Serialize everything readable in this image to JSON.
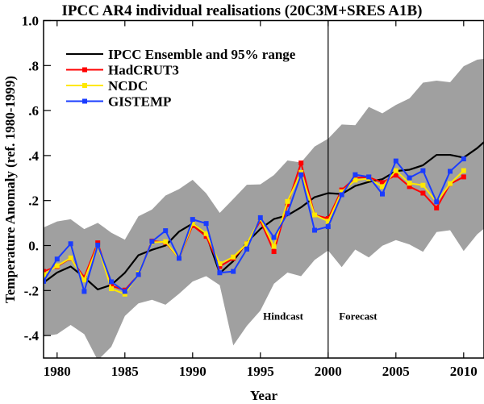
{
  "chart_data": {
    "type": "line",
    "title": "IPCC AR4 individual realisations (20C3M+SRES A1B)",
    "xlabel": "Year",
    "ylabel": "Temperature Anomaly (ref. 1980-1999)",
    "xlim": [
      1979,
      2011.5
    ],
    "ylim": [
      -0.5,
      1.0
    ],
    "xticks": [
      1980,
      1985,
      1990,
      1995,
      2000,
      2005,
      2010
    ],
    "xtick_labels": [
      "1980",
      "1985",
      "1990",
      "1995",
      "2000",
      "2005",
      "2010"
    ],
    "yticks": [
      -0.4,
      -0.2,
      0.0,
      0.2,
      0.4,
      0.6,
      0.8,
      1.0
    ],
    "ytick_labels": [
      "-.4",
      "-.2",
      "0.",
      ".2",
      ".4",
      ".6",
      ".8",
      "1.0"
    ],
    "grid": false,
    "legend_position": "top-left",
    "divider_year": 2000,
    "annotations": [
      {
        "text": "Hindcast",
        "x": 1995.2,
        "y": -0.33
      },
      {
        "text": "Forecast",
        "x": 2000.8,
        "y": -0.33
      }
    ],
    "band": {
      "name": "IPCC 95% range",
      "color": "#a0a0a0",
      "x": [
        1979,
        1980,
        1981,
        1982,
        1983,
        1984,
        1985,
        1986,
        1987,
        1988,
        1989,
        1990,
        1991,
        1992,
        1993,
        1994,
        1995,
        1996,
        1997,
        1998,
        1999,
        2000,
        2001,
        2002,
        2003,
        2004,
        2005,
        2006,
        2007,
        2008,
        2009,
        2010,
        2011,
        2011.5
      ],
      "upper": [
        0.08,
        0.107,
        0.117,
        0.073,
        0.101,
        0.057,
        0.026,
        0.13,
        0.16,
        0.222,
        0.251,
        0.292,
        0.232,
        0.145,
        0.207,
        0.27,
        0.272,
        0.313,
        0.378,
        0.369,
        0.44,
        0.475,
        0.538,
        0.535,
        0.616,
        0.588,
        0.625,
        0.654,
        0.724,
        0.733,
        0.726,
        0.797,
        0.826,
        0.83
      ],
      "lower": [
        -0.404,
        -0.394,
        -0.353,
        -0.394,
        -0.51,
        -0.45,
        -0.313,
        -0.257,
        -0.241,
        -0.263,
        -0.214,
        -0.16,
        -0.136,
        -0.176,
        -0.444,
        -0.357,
        -0.289,
        -0.17,
        -0.12,
        -0.136,
        -0.064,
        -0.022,
        -0.096,
        -0.018,
        -0.053,
        -0.001,
        0.024,
        0.005,
        -0.028,
        0.06,
        0.068,
        -0.024,
        0.05,
        0.075
      ]
    },
    "series": [
      {
        "name": "IPCC Ensemble and 95% range",
        "color": "#000000",
        "markers": false,
        "x": [
          1979,
          1980,
          1981,
          1982,
          1983,
          1984,
          1985,
          1986,
          1987,
          1988,
          1989,
          1990,
          1991,
          1992,
          1993,
          1994,
          1995,
          1996,
          1997,
          1998,
          1999,
          2000,
          2001,
          2002,
          2003,
          2004,
          2005,
          2006,
          2007,
          2008,
          2009,
          2010,
          2011,
          2011.5
        ],
        "values": [
          -0.165,
          -0.12,
          -0.093,
          -0.141,
          -0.195,
          -0.175,
          -0.121,
          -0.043,
          -0.019,
          0.0,
          0.062,
          0.098,
          0.05,
          -0.123,
          -0.069,
          0.014,
          0.074,
          0.118,
          0.134,
          0.17,
          0.215,
          0.233,
          0.229,
          0.265,
          0.283,
          0.295,
          0.331,
          0.337,
          0.357,
          0.403,
          0.403,
          0.391,
          0.433,
          0.46
        ]
      },
      {
        "name": "HadCRUT3",
        "color": "#ff0000",
        "markers": true,
        "x": [
          1979,
          1980,
          1981,
          1982,
          1983,
          1984,
          1985,
          1986,
          1987,
          1988,
          1989,
          1990,
          1991,
          1992,
          1993,
          1994,
          1995,
          1996,
          1997,
          1998,
          1999,
          2000,
          2001,
          2002,
          2003,
          2004,
          2005,
          2006,
          2007,
          2008,
          2009,
          2010
        ],
        "values": [
          -0.115,
          -0.093,
          -0.057,
          -0.141,
          0.012,
          -0.179,
          -0.198,
          -0.129,
          0.02,
          0.014,
          -0.057,
          0.089,
          0.041,
          -0.093,
          -0.057,
          0.008,
          0.11,
          -0.027,
          0.182,
          0.367,
          0.136,
          0.12,
          0.247,
          0.301,
          0.304,
          0.28,
          0.313,
          0.262,
          0.233,
          0.167,
          0.274,
          0.305
        ]
      },
      {
        "name": "NCDC",
        "color": "#ffe800",
        "markers": true,
        "x": [
          1979,
          1980,
          1981,
          1982,
          1983,
          1984,
          1985,
          1986,
          1987,
          1988,
          1989,
          1990,
          1991,
          1992,
          1993,
          1994,
          1995,
          1996,
          1997,
          1998,
          1999,
          2000,
          2001,
          2002,
          2003,
          2004,
          2005,
          2006,
          2007,
          2008,
          2009,
          2010
        ],
        "values": [
          -0.129,
          -0.09,
          -0.055,
          -0.153,
          0.0,
          -0.192,
          -0.216,
          -0.123,
          0.014,
          0.017,
          -0.057,
          0.098,
          0.053,
          -0.081,
          -0.051,
          0.008,
          0.119,
          -0.004,
          0.196,
          0.325,
          0.136,
          0.108,
          0.239,
          0.291,
          0.297,
          0.262,
          0.333,
          0.277,
          0.268,
          0.194,
          0.275,
          0.333
        ]
      },
      {
        "name": "GISTEMP",
        "color": "#1a3cff",
        "markers": true,
        "x": [
          1979,
          1980,
          1981,
          1982,
          1983,
          1984,
          1985,
          1986,
          1987,
          1988,
          1989,
          1990,
          1991,
          1992,
          1993,
          1994,
          1995,
          1996,
          1997,
          1998,
          1999,
          2000,
          2001,
          2002,
          2003,
          2004,
          2005,
          2006,
          2007,
          2008,
          2009,
          2010
        ],
        "values": [
          -0.159,
          -0.06,
          0.008,
          -0.204,
          0.002,
          -0.161,
          -0.204,
          -0.129,
          0.018,
          0.066,
          -0.057,
          0.116,
          0.098,
          -0.121,
          -0.115,
          -0.016,
          0.124,
          0.036,
          0.143,
          0.315,
          0.068,
          0.084,
          0.226,
          0.315,
          0.305,
          0.229,
          0.376,
          0.301,
          0.333,
          0.194,
          0.33,
          0.385
        ]
      }
    ]
  }
}
